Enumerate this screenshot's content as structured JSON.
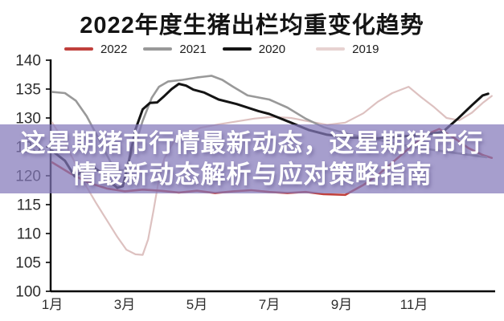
{
  "overlay": {
    "line1": "这星期猪市行情最新动态，这星期猪市行",
    "line2": "情最新动态解析与应对策略指南",
    "background_color": "#8379ba",
    "text_color": "#ffffff"
  },
  "chart_data": {
    "type": "line",
    "title": "2022年度生猪出栏均重变化趋势",
    "xlabel": "",
    "ylabel": "",
    "x_tick_labels": [
      "1月",
      "3月",
      "5月",
      "7月",
      "9月",
      "11月"
    ],
    "x_tick_months": [
      1,
      3,
      5,
      7,
      9,
      11
    ],
    "xlim": [
      1,
      13.3
    ],
    "ylim": [
      100,
      140
    ],
    "y_ticks": [
      100,
      105,
      110,
      115,
      120,
      125,
      130,
      135,
      140
    ],
    "grid": false,
    "legend_position": "top",
    "axis_color": "#000000",
    "tick_label_color": "#2e2e2e",
    "series": [
      {
        "name": "2022",
        "color": "#c0403c",
        "x": [
          1.0,
          1.5,
          2.0,
          2.5,
          3.0,
          3.5,
          4.0,
          4.5,
          5.0,
          5.5,
          6.0,
          6.5,
          7.0,
          7.5,
          8.0,
          8.5,
          9.1,
          9.6,
          10.0,
          10.5,
          11.0,
          11.4,
          11.7,
          12.1,
          12.5,
          12.9,
          13.15
        ],
        "values": [
          122.3,
          120.4,
          118.8,
          117.8,
          117.3,
          117.6,
          117.4,
          117.1,
          117.4,
          117.0,
          117.3,
          117.5,
          117.2,
          117.0,
          117.2,
          116.8,
          116.7,
          118.4,
          120.1,
          122.8,
          125.5,
          127.3,
          128.1,
          126.6,
          124.8,
          123.6,
          123.1
        ]
      },
      {
        "name": "2021",
        "color": "#999999",
        "x": [
          1.0,
          1.35,
          1.65,
          1.95,
          2.25,
          2.6,
          2.78,
          3.0,
          3.25,
          3.5,
          3.75,
          3.95,
          4.2,
          4.6,
          5.0,
          5.4,
          5.7,
          6.0,
          6.4,
          7.0,
          7.5,
          8.0,
          8.5,
          9.2,
          10.0,
          10.8,
          11.6,
          12.3,
          13.0
        ],
        "values": [
          134.5,
          134.3,
          133.0,
          130.3,
          126.8,
          122.5,
          120.9,
          121.0,
          124.5,
          129.5,
          133.5,
          135.4,
          136.3,
          136.6,
          137.0,
          137.3,
          136.6,
          135.4,
          133.9,
          133.2,
          131.8,
          129.9,
          128.4,
          127.2,
          126.2,
          125.2,
          124.4,
          123.8,
          123.2
        ]
      },
      {
        "name": "2020",
        "color": "#141414",
        "x": [
          1.0,
          1.35,
          1.62,
          1.85,
          2.05,
          2.35,
          2.6,
          2.8,
          2.95,
          3.1,
          3.3,
          3.5,
          3.7,
          3.9,
          4.1,
          4.3,
          4.5,
          4.7,
          4.9,
          5.2,
          5.6,
          6.1,
          6.7,
          7.0,
          7.6,
          8.1,
          8.6,
          9.3,
          10.0,
          10.7,
          11.3,
          11.8,
          12.2,
          12.6,
          12.9,
          13.05
        ],
        "values": [
          124.3,
          122.6,
          119.9,
          120.8,
          121.8,
          120.6,
          119.0,
          117.9,
          118.2,
          122.0,
          128.0,
          131.5,
          132.6,
          132.7,
          133.8,
          135.0,
          135.9,
          135.6,
          134.9,
          134.4,
          133.2,
          132.4,
          131.2,
          130.7,
          129.2,
          127.9,
          127.1,
          126.6,
          126.5,
          126.8,
          127.1,
          127.6,
          129.8,
          132.2,
          133.9,
          134.2
        ]
      },
      {
        "name": "2019",
        "color": "#ddc1c0",
        "x": [
          1.0,
          1.3,
          1.6,
          1.9,
          2.2,
          2.5,
          2.8,
          3.05,
          3.3,
          3.5,
          3.65,
          3.8,
          3.95,
          4.1,
          4.35,
          4.7,
          5.1,
          5.6,
          6.1,
          6.6,
          7.1,
          7.6,
          8.1,
          8.6,
          9.1,
          9.6,
          10.0,
          10.4,
          10.85,
          11.2,
          11.55,
          11.9,
          12.25,
          12.6,
          12.9,
          13.15
        ],
        "values": [
          129.2,
          126.2,
          122.6,
          118.6,
          115.4,
          112.4,
          109.4,
          107.2,
          106.4,
          106.3,
          109.0,
          114.0,
          119.5,
          123.0,
          125.8,
          127.2,
          128.3,
          128.9,
          129.4,
          129.9,
          130.2,
          130.0,
          129.4,
          128.8,
          129.2,
          130.8,
          132.8,
          134.3,
          135.4,
          133.6,
          131.9,
          130.0,
          129.6,
          130.9,
          132.6,
          133.8
        ]
      }
    ]
  }
}
